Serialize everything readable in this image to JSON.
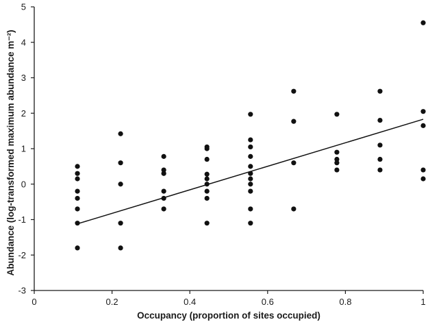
{
  "chart_data": {
    "type": "scatter",
    "title": "",
    "xlabel": "Occupancy (proportion of sites occupied)",
    "ylabel": "Abundance (log-transformed maximum abundance m⁻²)",
    "xlim": [
      0,
      1
    ],
    "ylim": [
      -3,
      5
    ],
    "x_ticks": [
      0,
      0.2,
      0.4,
      0.6,
      0.8,
      1
    ],
    "x_tick_labels": [
      "0",
      "0.2",
      "0.4",
      "0.6",
      "0.8",
      "1"
    ],
    "y_ticks": [
      -3,
      -2,
      -1,
      0,
      1,
      2,
      3,
      4,
      5
    ],
    "y_tick_labels": [
      "-3",
      "-2",
      "-1",
      "0",
      "1",
      "2",
      "3",
      "4",
      "5"
    ],
    "grid": false,
    "legend": "none",
    "marker_color": "#111111",
    "points": [
      {
        "x": 0.111,
        "y": 0.5
      },
      {
        "x": 0.111,
        "y": 0.3
      },
      {
        "x": 0.111,
        "y": 0.15
      },
      {
        "x": 0.111,
        "y": -0.2
      },
      {
        "x": 0.111,
        "y": -0.4
      },
      {
        "x": 0.111,
        "y": -0.7
      },
      {
        "x": 0.111,
        "y": -1.1
      },
      {
        "x": 0.111,
        "y": -1.8
      },
      {
        "x": 0.222,
        "y": 1.42
      },
      {
        "x": 0.222,
        "y": 0.6
      },
      {
        "x": 0.222,
        "y": 0.0
      },
      {
        "x": 0.222,
        "y": -1.1
      },
      {
        "x": 0.222,
        "y": -1.8
      },
      {
        "x": 0.333,
        "y": 0.78
      },
      {
        "x": 0.333,
        "y": 0.4
      },
      {
        "x": 0.333,
        "y": 0.3
      },
      {
        "x": 0.333,
        "y": -0.2
      },
      {
        "x": 0.333,
        "y": -0.4
      },
      {
        "x": 0.333,
        "y": -0.7
      },
      {
        "x": 0.444,
        "y": 1.05
      },
      {
        "x": 0.444,
        "y": 1.0
      },
      {
        "x": 0.444,
        "y": 0.7
      },
      {
        "x": 0.444,
        "y": 0.28
      },
      {
        "x": 0.444,
        "y": 0.15
      },
      {
        "x": 0.444,
        "y": 0.0
      },
      {
        "x": 0.444,
        "y": -0.2
      },
      {
        "x": 0.444,
        "y": -0.4
      },
      {
        "x": 0.444,
        "y": -1.1
      },
      {
        "x": 0.556,
        "y": 1.97
      },
      {
        "x": 0.556,
        "y": 1.25
      },
      {
        "x": 0.556,
        "y": 1.05
      },
      {
        "x": 0.556,
        "y": 0.78
      },
      {
        "x": 0.556,
        "y": 0.5
      },
      {
        "x": 0.556,
        "y": 0.3
      },
      {
        "x": 0.556,
        "y": 0.15
      },
      {
        "x": 0.556,
        "y": 0.0
      },
      {
        "x": 0.556,
        "y": -0.2
      },
      {
        "x": 0.556,
        "y": -0.7
      },
      {
        "x": 0.556,
        "y": -1.1
      },
      {
        "x": 0.667,
        "y": 2.62
      },
      {
        "x": 0.667,
        "y": 1.77
      },
      {
        "x": 0.667,
        "y": 0.6
      },
      {
        "x": 0.667,
        "y": -0.7
      },
      {
        "x": 0.778,
        "y": 1.97
      },
      {
        "x": 0.778,
        "y": 0.9
      },
      {
        "x": 0.778,
        "y": 0.7
      },
      {
        "x": 0.778,
        "y": 0.6
      },
      {
        "x": 0.778,
        "y": 0.4
      },
      {
        "x": 0.889,
        "y": 2.62
      },
      {
        "x": 0.889,
        "y": 1.8
      },
      {
        "x": 0.889,
        "y": 1.1
      },
      {
        "x": 0.889,
        "y": 0.7
      },
      {
        "x": 0.889,
        "y": 0.4
      },
      {
        "x": 1.0,
        "y": 4.55
      },
      {
        "x": 1.0,
        "y": 2.05
      },
      {
        "x": 1.0,
        "y": 1.65
      },
      {
        "x": 1.0,
        "y": 0.4
      },
      {
        "x": 1.0,
        "y": 0.15
      }
    ],
    "fit_line": {
      "x": [
        0.111,
        1.0
      ],
      "y": [
        -1.12,
        1.83
      ]
    }
  }
}
